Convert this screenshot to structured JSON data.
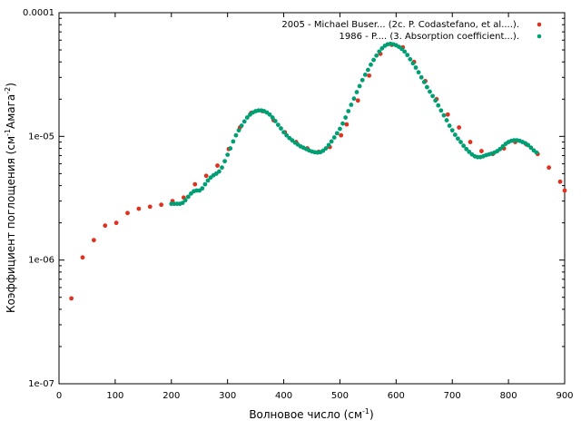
{
  "chart_data": {
    "type": "scatter",
    "xlabel": "Волновое число (см",
    "xlabel_sup": "-1",
    "xlabel_end": ")",
    "ylabel": "Коэффициент поглощения (см",
    "ylabel_sup1": "-1",
    "ylabel_mid": "Амага",
    "ylabel_sup2": "-2",
    "ylabel_end": ")",
    "xlim": [
      0,
      900
    ],
    "ylim": [
      1e-07,
      0.0001
    ],
    "y_scale": "log",
    "x_ticks": [
      "0",
      "100",
      "200",
      "300",
      "400",
      "500",
      "600",
      "700",
      "800",
      "900"
    ],
    "y_ticks": [
      "1e-07",
      "1e-06",
      "1e-05",
      "0.0001"
    ],
    "legend_position": "top-right",
    "series": [
      {
        "name": "2005 - Michael Buser... (2c. P. Codastefano, et al....).",
        "color": "#e0301e",
        "points": [
          [
            22,
            4.9e-07
          ],
          [
            42,
            1.05e-06
          ],
          [
            62,
            1.45e-06
          ],
          [
            82,
            1.9e-06
          ],
          [
            102,
            2e-06
          ],
          [
            122,
            2.4e-06
          ],
          [
            142,
            2.6e-06
          ],
          [
            162,
            2.7e-06
          ],
          [
            182,
            2.8e-06
          ],
          [
            202,
            3e-06
          ],
          [
            222,
            3.2e-06
          ],
          [
            242,
            4.1e-06
          ],
          [
            262,
            4.8e-06
          ],
          [
            282,
            5.8e-06
          ],
          [
            302,
            7.9e-06
          ],
          [
            322,
            1.18e-05
          ],
          [
            342,
            1.55e-05
          ],
          [
            362,
            1.6e-05
          ],
          [
            382,
            1.35e-05
          ],
          [
            402,
            1.08e-05
          ],
          [
            422,
            9e-06
          ],
          [
            442,
            8e-06
          ],
          [
            462,
            7.5e-06
          ],
          [
            482,
            8.2e-06
          ],
          [
            502,
            1.02e-05
          ],
          [
            512,
            1.25e-05
          ],
          [
            532,
            1.95e-05
          ],
          [
            552,
            3.1e-05
          ],
          [
            572,
            4.65e-05
          ],
          [
            592,
            5.5e-05
          ],
          [
            612,
            5.25e-05
          ],
          [
            632,
            4e-05
          ],
          [
            652,
            2.8e-05
          ],
          [
            672,
            2e-05
          ],
          [
            692,
            1.5e-05
          ],
          [
            712,
            1.18e-05
          ],
          [
            732,
            9e-06
          ],
          [
            752,
            7.6e-06
          ],
          [
            772,
            7.2e-06
          ],
          [
            792,
            8e-06
          ],
          [
            812,
            9e-06
          ],
          [
            832,
            8.6e-06
          ],
          [
            852,
            7.2e-06
          ],
          [
            872,
            5.6e-06
          ],
          [
            892,
            4.3e-06
          ],
          [
            900,
            3.65e-06
          ]
        ]
      },
      {
        "name": "1986 - P.... (3. Absorption coefficient...).",
        "color": "#009e73",
        "points": [
          [
            200,
            2.85e-06
          ],
          [
            205,
            2.85e-06
          ],
          [
            210,
            2.85e-06
          ],
          [
            215,
            2.85e-06
          ],
          [
            220,
            2.9e-06
          ],
          [
            225,
            3.05e-06
          ],
          [
            230,
            3.25e-06
          ],
          [
            235,
            3.45e-06
          ],
          [
            240,
            3.6e-06
          ],
          [
            245,
            3.65e-06
          ],
          [
            250,
            3.65e-06
          ],
          [
            255,
            3.8e-06
          ],
          [
            260,
            4.1e-06
          ],
          [
            265,
            4.4e-06
          ],
          [
            270,
            4.65e-06
          ],
          [
            275,
            4.85e-06
          ],
          [
            280,
            5e-06
          ],
          [
            285,
            5.2e-06
          ],
          [
            290,
            5.6e-06
          ],
          [
            295,
            6.3e-06
          ],
          [
            300,
            7.1e-06
          ],
          [
            305,
            8e-06
          ],
          [
            310,
            9.1e-06
          ],
          [
            315,
            1.02e-05
          ],
          [
            320,
            1.12e-05
          ],
          [
            325,
            1.22e-05
          ],
          [
            330,
            1.32e-05
          ],
          [
            335,
            1.42e-05
          ],
          [
            340,
            1.5e-05
          ],
          [
            345,
            1.56e-05
          ],
          [
            350,
            1.6e-05
          ],
          [
            355,
            1.62e-05
          ],
          [
            360,
            1.62e-05
          ],
          [
            365,
            1.6e-05
          ],
          [
            370,
            1.56e-05
          ],
          [
            375,
            1.5e-05
          ],
          [
            380,
            1.42e-05
          ],
          [
            385,
            1.33e-05
          ],
          [
            390,
            1.24e-05
          ],
          [
            395,
            1.16e-05
          ],
          [
            400,
            1.08e-05
          ],
          [
            405,
            1.02e-05
          ],
          [
            410,
            9.7e-06
          ],
          [
            415,
            9.3e-06
          ],
          [
            420,
            8.9e-06
          ],
          [
            425,
            8.6e-06
          ],
          [
            430,
            8.3e-06
          ],
          [
            435,
            8.1e-06
          ],
          [
            440,
            7.9e-06
          ],
          [
            445,
            7.7e-06
          ],
          [
            450,
            7.55e-06
          ],
          [
            455,
            7.45e-06
          ],
          [
            460,
            7.4e-06
          ],
          [
            465,
            7.45e-06
          ],
          [
            470,
            7.65e-06
          ],
          [
            475,
            8e-06
          ],
          [
            480,
            8.5e-06
          ],
          [
            485,
            9.1e-06
          ],
          [
            490,
            9.8e-06
          ],
          [
            495,
            1.06e-05
          ],
          [
            500,
            1.15e-05
          ],
          [
            505,
            1.27e-05
          ],
          [
            510,
            1.42e-05
          ],
          [
            515,
            1.6e-05
          ],
          [
            520,
            1.8e-05
          ],
          [
            525,
            2.02e-05
          ],
          [
            530,
            2.28e-05
          ],
          [
            535,
            2.55e-05
          ],
          [
            540,
            2.85e-05
          ],
          [
            545,
            3.15e-05
          ],
          [
            550,
            3.45e-05
          ],
          [
            555,
            3.8e-05
          ],
          [
            560,
            4.15e-05
          ],
          [
            565,
            4.5e-05
          ],
          [
            570,
            4.85e-05
          ],
          [
            575,
            5.15e-05
          ],
          [
            580,
            5.4e-05
          ],
          [
            585,
            5.55e-05
          ],
          [
            590,
            5.6e-05
          ],
          [
            595,
            5.55e-05
          ],
          [
            600,
            5.45e-05
          ],
          [
            605,
            5.3e-05
          ],
          [
            610,
            5.1e-05
          ],
          [
            615,
            4.85e-05
          ],
          [
            620,
            4.55e-05
          ],
          [
            625,
            4.2e-05
          ],
          [
            630,
            3.9e-05
          ],
          [
            635,
            3.6e-05
          ],
          [
            640,
            3.3e-05
          ],
          [
            645,
            3e-05
          ],
          [
            650,
            2.75e-05
          ],
          [
            655,
            2.5e-05
          ],
          [
            660,
            2.3e-05
          ],
          [
            665,
            2.12e-05
          ],
          [
            670,
            1.95e-05
          ],
          [
            675,
            1.78e-05
          ],
          [
            680,
            1.62e-05
          ],
          [
            685,
            1.48e-05
          ],
          [
            690,
            1.35e-05
          ],
          [
            695,
            1.22e-05
          ],
          [
            700,
            1.12e-05
          ],
          [
            705,
            1.03e-05
          ],
          [
            710,
            9.6e-06
          ],
          [
            715,
            9e-06
          ],
          [
            720,
            8.4e-06
          ],
          [
            725,
            7.9e-06
          ],
          [
            730,
            7.5e-06
          ],
          [
            735,
            7.15e-06
          ],
          [
            740,
            6.9e-06
          ],
          [
            745,
            6.8e-06
          ],
          [
            750,
            6.8e-06
          ],
          [
            755,
            6.9e-06
          ],
          [
            760,
            7.05e-06
          ],
          [
            765,
            7.15e-06
          ],
          [
            770,
            7.25e-06
          ],
          [
            775,
            7.4e-06
          ],
          [
            780,
            7.6e-06
          ],
          [
            785,
            7.9e-06
          ],
          [
            790,
            8.3e-06
          ],
          [
            795,
            8.7e-06
          ],
          [
            800,
            9e-06
          ],
          [
            805,
            9.2e-06
          ],
          [
            810,
            9.3e-06
          ],
          [
            815,
            9.3e-06
          ],
          [
            820,
            9.2e-06
          ],
          [
            825,
            9e-06
          ],
          [
            830,
            8.8e-06
          ],
          [
            835,
            8.5e-06
          ],
          [
            840,
            8.1e-06
          ],
          [
            845,
            7.7e-06
          ],
          [
            850,
            7.4e-06
          ]
        ]
      }
    ]
  }
}
